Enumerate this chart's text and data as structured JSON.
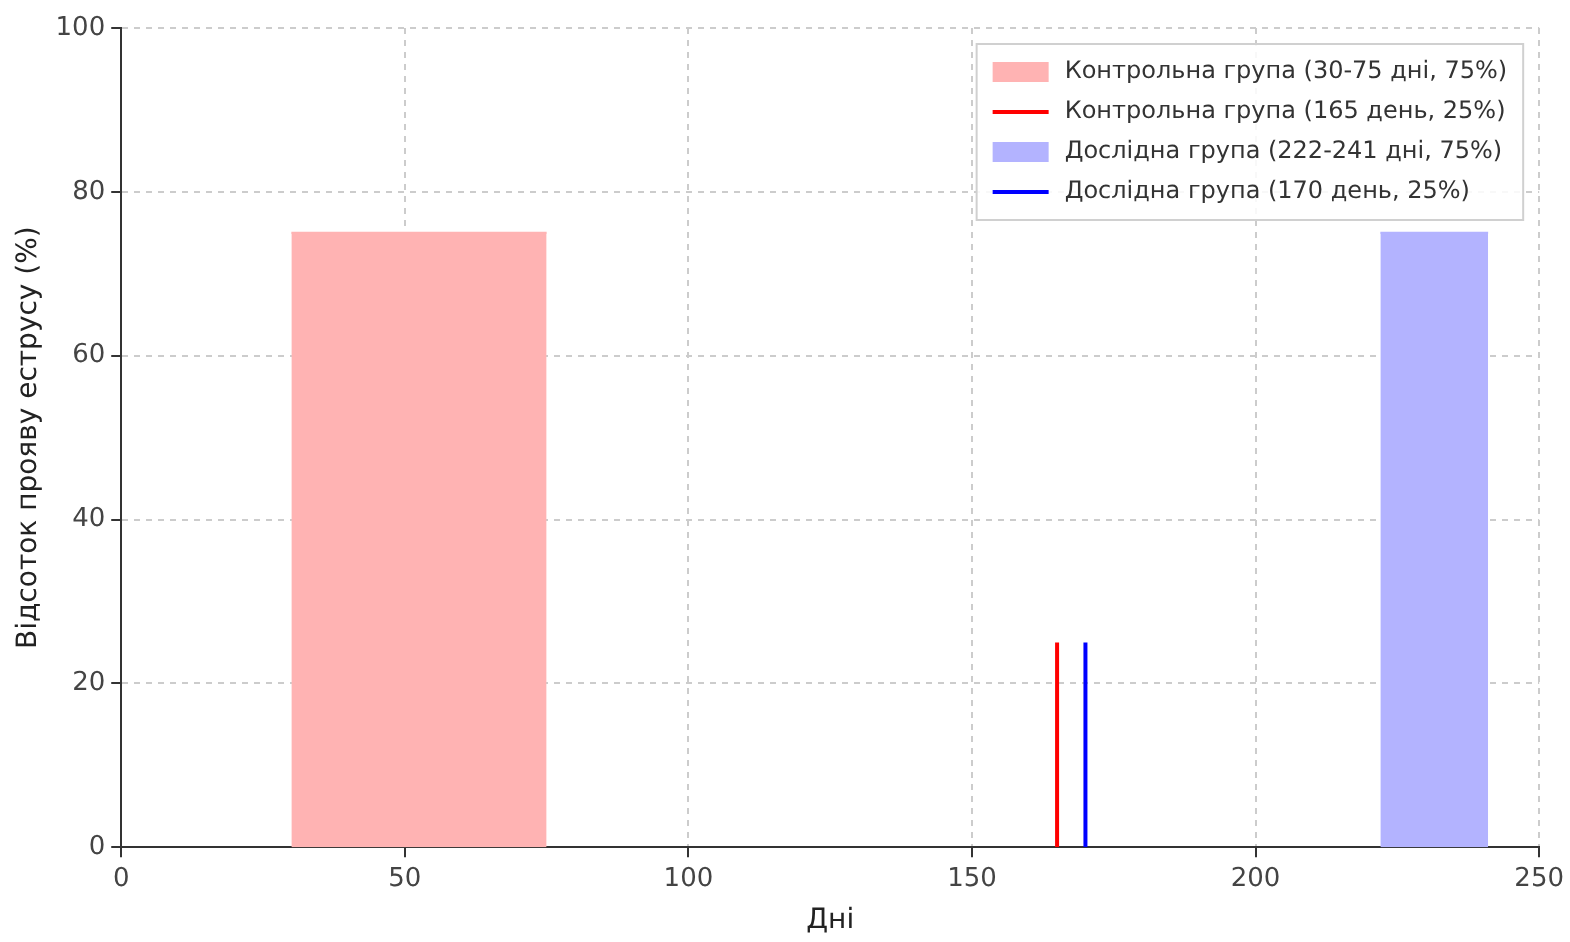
{
  "chart_data": {
    "type": "area",
    "xlabel": "Дні",
    "ylabel": "Відсоток прояву еструсу (%)",
    "series": [
      {
        "name": "Контрольна група (30-75 дні, 75%)",
        "color": "#ffb3b3",
        "x": [
          30,
          75
        ],
        "values": [
          75,
          75
        ]
      },
      {
        "name": "Контрольна група (165 день, 25%)",
        "type": "line",
        "color": "#ff0000",
        "x": [
          165,
          165
        ],
        "values": [
          0,
          25
        ]
      },
      {
        "name": "Дослідна група (222-241 дні, 75%)",
        "color": "#b3b3ff",
        "x": [
          222,
          241
        ],
        "values": [
          75,
          75
        ]
      },
      {
        "name": "Дослідна група (170 день, 25%)",
        "type": "line",
        "color": "#0000ff",
        "x": [
          170,
          170
        ],
        "values": [
          0,
          25
        ]
      }
    ],
    "xlim": [
      0,
      250
    ],
    "xticks": [
      0,
      50,
      100,
      150,
      200,
      250
    ],
    "ylim": [
      0,
      100
    ],
    "yticks": [
      0,
      20,
      40,
      60,
      80,
      100
    ],
    "grid": true,
    "legend": "top right"
  }
}
